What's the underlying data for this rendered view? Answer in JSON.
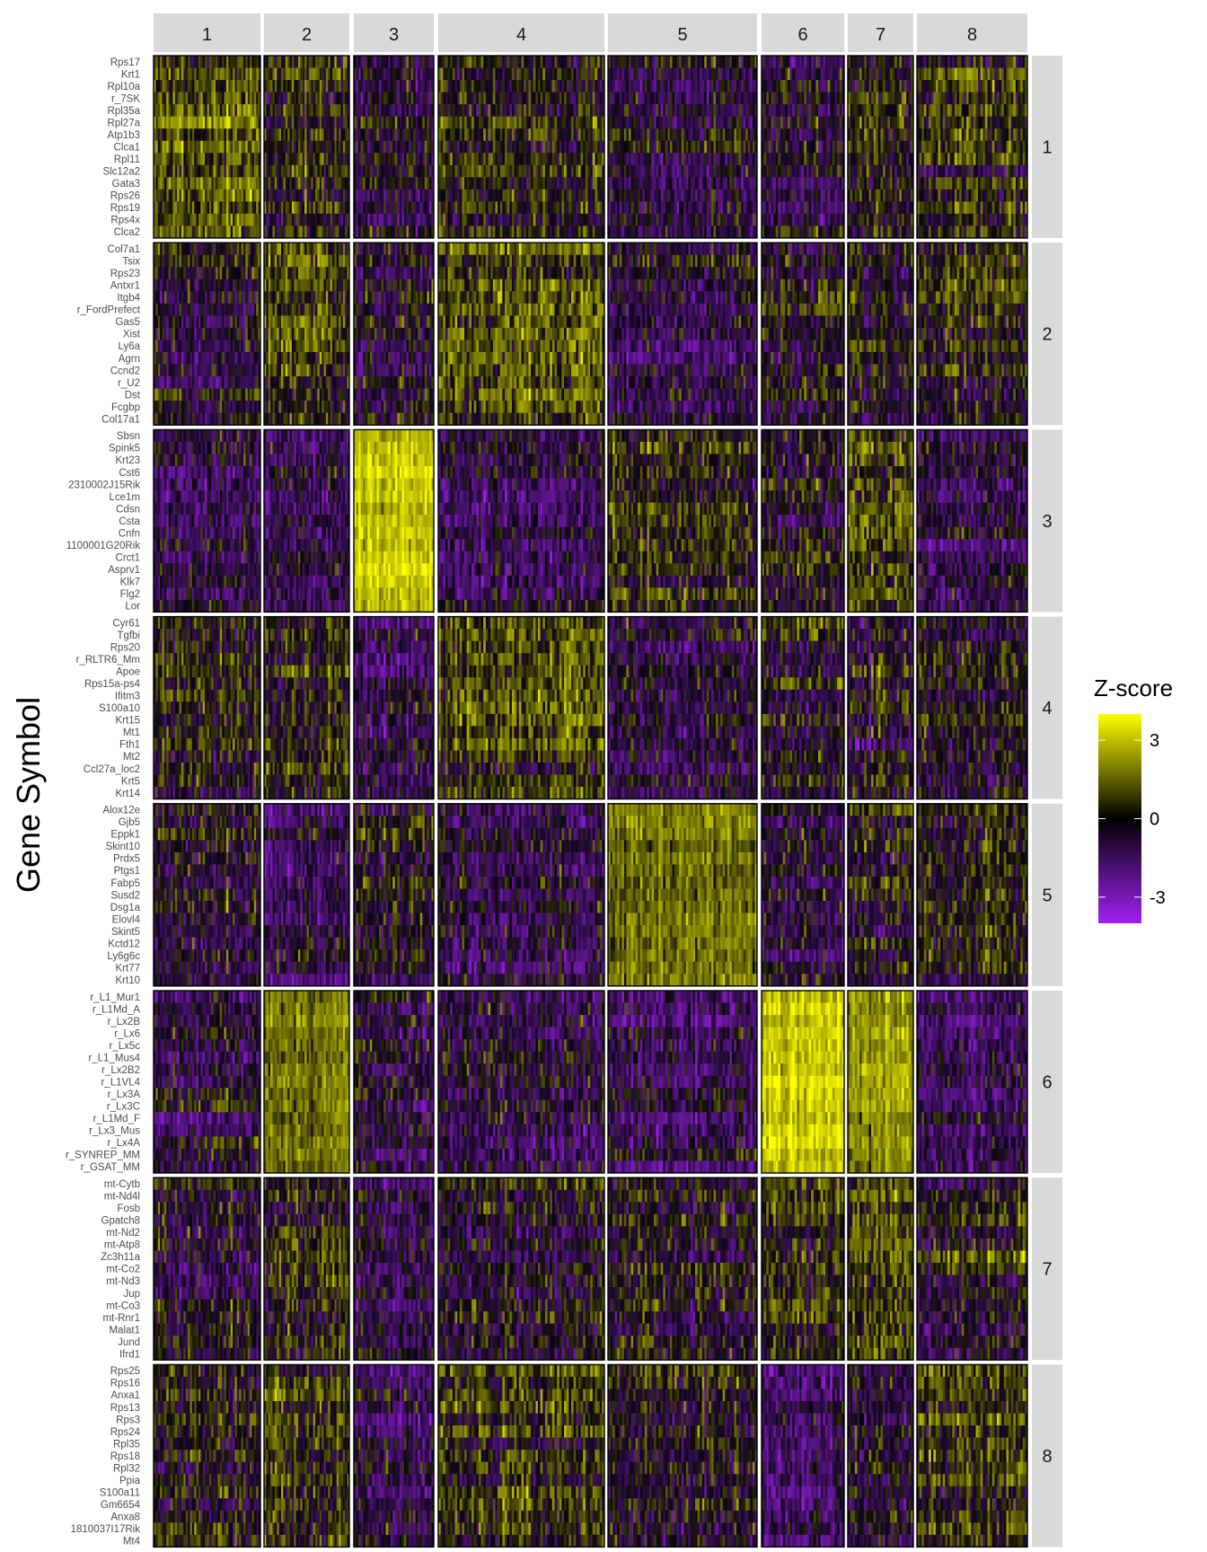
{
  "chart_data": {
    "type": "heatmap",
    "ylabel": "Gene Symbol",
    "column_facets": [
      "1",
      "2",
      "3",
      "4",
      "5",
      "6",
      "7",
      "8"
    ],
    "row_facets": [
      "1",
      "2",
      "3",
      "4",
      "5",
      "6",
      "7",
      "8"
    ],
    "cells_per_column_facet": [
      50,
      40,
      35,
      70,
      65,
      35,
      28,
      47
    ],
    "genes_by_row_facet": [
      [
        "Rps17",
        "Krt1",
        "Rpl10a",
        "r_7SK",
        "Rpl35a",
        "Rpl27a",
        "Atp1b3",
        "Clca1",
        "Rpl11",
        "Slc12a2",
        "Gata3",
        "Rps26",
        "Rps19",
        "Rps4x",
        "Clca2"
      ],
      [
        "Col7a1",
        "Tsix",
        "Rps23",
        "Antxr1",
        "Itgb4",
        "r_FordPrefect",
        "Gas5",
        "Xist",
        "Ly6a",
        "Agrn",
        "Ccnd2",
        "r_U2",
        "Dst",
        "Fcgbp",
        "Col17a1"
      ],
      [
        "Sbsn",
        "Spink5",
        "Krt23",
        "Cst6",
        "2310002J15Rik",
        "Lce1m",
        "Cdsn",
        "Csta",
        "Cnfn",
        "1100001G20Rik",
        "Crct1",
        "Asprv1",
        "Klk7",
        "Flg2",
        "Lor"
      ],
      [
        "Cyr61",
        "Tgfbi",
        "Rps20",
        "r_RLTR6_Mm",
        "Apoe",
        "Rps15a-ps4",
        "Ifitm3",
        "S100a10",
        "Krt15",
        "Mt1",
        "Fth1",
        "Mt2",
        "Ccl27a_loc2",
        "Krt5",
        "Krt14"
      ],
      [
        "Alox12e",
        "Gjb5",
        "Eppk1",
        "Skint10",
        "Prdx5",
        "Ptgs1",
        "Fabp5",
        "Susd2",
        "Dsg1a",
        "Elovl4",
        "Skint5",
        "Kctd12",
        "Ly6g6c",
        "Krt77",
        "Krt10"
      ],
      [
        "r_L1_Mur1",
        "r_L1Md_A",
        "r_Lx2B",
        "r_Lx6",
        "r_Lx5c",
        "r_L1_Mus4",
        "r_Lx2B2",
        "r_L1VL4",
        "r_Lx3A",
        "r_Lx3C",
        "r_L1Md_F",
        "r_Lx3_Mus",
        "r_Lx4A",
        "r_SYNREP_MM",
        "r_GSAT_MM"
      ],
      [
        "mt-Cytb",
        "mt-Nd4l",
        "Fosb",
        "Gpatch8",
        "mt-Nd2",
        "mt-Atp8",
        "Zc3h11a",
        "mt-Co2",
        "mt-Nd3",
        "Jup",
        "mt-Co3",
        "mt-Rnr1",
        "Malat1",
        "Jund",
        "Ifrd1"
      ],
      [
        "Rps25",
        "Rps16",
        "Anxa1",
        "Rps13",
        "Rps3",
        "Rps24",
        "Rpl35",
        "Rps18",
        "Rpl32",
        "Ppia",
        "S100a11",
        "Gm6654",
        "Anxa8",
        "1810037I17Rik",
        "Mt4"
      ]
    ],
    "mean_zscore_by_block": [
      [
        0.8,
        0.3,
        -0.7,
        0.2,
        -0.3,
        -0.6,
        0.1,
        0.4
      ],
      [
        -0.4,
        0.8,
        -0.6,
        1.0,
        -0.6,
        0.0,
        -0.2,
        0.1
      ],
      [
        -0.7,
        -0.9,
        3.0,
        -0.9,
        0.3,
        0.0,
        0.4,
        -0.6
      ],
      [
        0.1,
        0.3,
        -0.8,
        0.9,
        -0.8,
        -0.2,
        -0.4,
        0.0
      ],
      [
        -0.3,
        -1.0,
        -0.1,
        -0.7,
        1.5,
        -0.6,
        -0.2,
        0.1
      ],
      [
        -0.5,
        1.5,
        -0.6,
        -0.7,
        -0.8,
        3.0,
        2.0,
        -1.0
      ],
      [
        -0.3,
        0.0,
        -0.6,
        -0.4,
        -0.3,
        0.4,
        0.6,
        -0.2
      ],
      [
        0.0,
        0.2,
        -0.9,
        0.5,
        -0.3,
        -1.2,
        -0.6,
        0.6
      ]
    ],
    "legend": {
      "title": "Z-score",
      "min": -4,
      "max": 4,
      "ticks": [
        3,
        0,
        -3
      ],
      "tick_labels": [
        "3",
        "0",
        "-3"
      ],
      "colors": {
        "low": "#a020f0",
        "mid": "#000000",
        "high": "#ffff00"
      },
      "placement": "right"
    },
    "colors": {
      "strip_background": "#d9d9d9",
      "strip_text": "#1a1a1a",
      "panel_border": "#000000",
      "gene_label": "#4d4d4d"
    }
  }
}
